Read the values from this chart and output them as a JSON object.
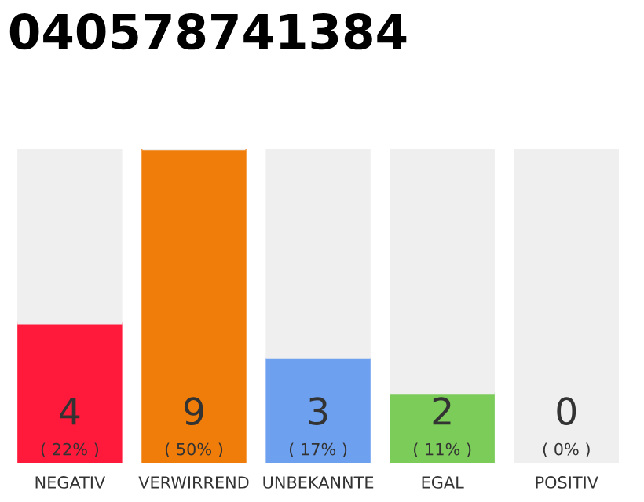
{
  "chart_data": {
    "type": "bar",
    "title": "040578741384",
    "categories": [
      "NEGATIV",
      "VERWIRREND",
      "UNBEKANNTE",
      "EGAL",
      "POSITIV"
    ],
    "stacked": true,
    "series": [
      {
        "values": [
          4,
          9,
          3,
          2,
          0
        ],
        "colors": [
          "#ff1a3c",
          "#f07d0a",
          "#6ea0f0",
          "#7ccc5a",
          "#e0e0e0"
        ],
        "value_labels": [
          "4\n( 22% )",
          "9\n( 50% )",
          "3\n( 17% )",
          "2\n( 11% )",
          "0\n( 0% )"
        ]
      },
      {
        "values": [
          5,
          0,
          6,
          7,
          9
        ],
        "color": "#efefef"
      }
    ],
    "ylim": [
      0,
      9
    ],
    "grid": false,
    "legend": false
  }
}
